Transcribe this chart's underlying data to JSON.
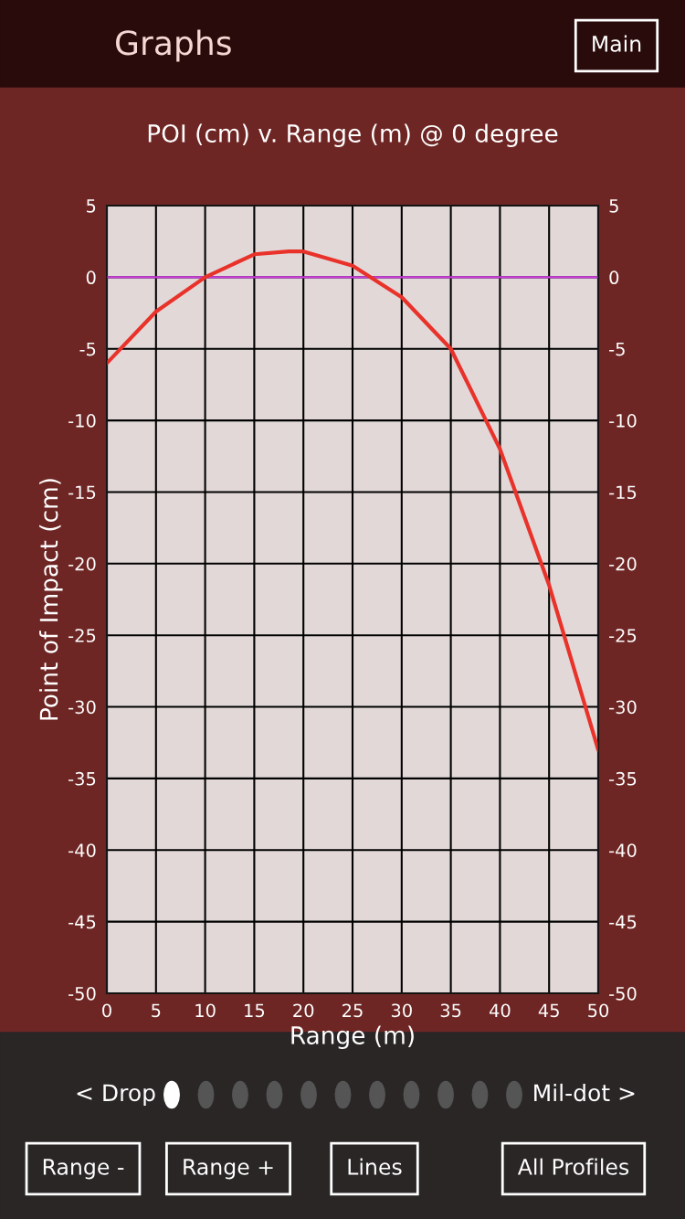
{
  "chart_data": {
    "type": "line",
    "title": "POI (cm) v. Range (m) @ 0 degree",
    "xlabel": "Range (m)",
    "ylabel": "Point of Impact (cm)",
    "x": [
      0,
      5,
      10,
      15,
      18.5,
      20,
      25,
      30,
      35,
      40,
      45,
      50
    ],
    "series": [
      {
        "color": "#e8322a",
        "values": [
          -6,
          -2.4,
          0,
          1.6,
          1.8,
          1.8,
          0.8,
          -1.4,
          -5,
          -12,
          -21.5,
          -33
        ]
      }
    ],
    "xlim": [
      0,
      50
    ],
    "xticks": [
      0,
      5,
      10,
      15,
      20,
      25,
      30,
      35,
      40,
      45,
      50
    ],
    "ylim": [
      -50,
      5
    ],
    "yticks": [
      -50,
      -45,
      -40,
      -35,
      -30,
      -25,
      -20,
      -15,
      -10,
      -5,
      0,
      5
    ],
    "y2lim": [
      -50,
      5
    ],
    "y2ticks": [
      -50,
      -45,
      -40,
      -35,
      -30,
      -25,
      -20,
      -15,
      -10,
      -5,
      0,
      5
    ],
    "ref_lines": [
      {
        "axis": "y",
        "value": 0,
        "color": "#d040e0"
      }
    ],
    "grid": true,
    "legend": false,
    "marker": "none",
    "line_style": "solid",
    "annotations": [
      "Graphs",
      "Main",
      "< Drop",
      "Mil-dot >",
      "Range -",
      "Range +",
      "Lines",
      "All Profiles"
    ]
  }
}
